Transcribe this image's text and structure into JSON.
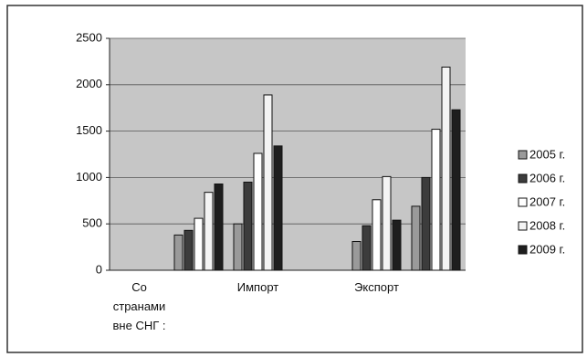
{
  "chart_data": {
    "type": "bar",
    "categories": [
      "Со странами вне СНГ :",
      null,
      "Импорт",
      null,
      "Экспорт",
      null
    ],
    "series": [
      {
        "name": "2005 г.",
        "color": "#9a9a9a",
        "values": [
          null,
          380,
          500,
          null,
          310,
          690
        ]
      },
      {
        "name": "2006 г.",
        "color": "#3c3c3c",
        "values": [
          null,
          430,
          950,
          null,
          480,
          1000
        ]
      },
      {
        "name": "2007 г.",
        "color": "#ffffff",
        "values": [
          null,
          560,
          1260,
          null,
          760,
          1520
        ]
      },
      {
        "name": "2008 г.",
        "color": "#f4f4f4",
        "values": [
          null,
          840,
          1890,
          null,
          1010,
          2190
        ]
      },
      {
        "name": "2009 г.",
        "color": "#1e1e1e",
        "values": [
          null,
          930,
          1340,
          null,
          540,
          1730
        ]
      }
    ],
    "ylim": [
      0,
      2500
    ],
    "yticks": [
      0,
      500,
      1000,
      1500,
      2000,
      2500
    ],
    "grid": true,
    "legend": "right"
  }
}
